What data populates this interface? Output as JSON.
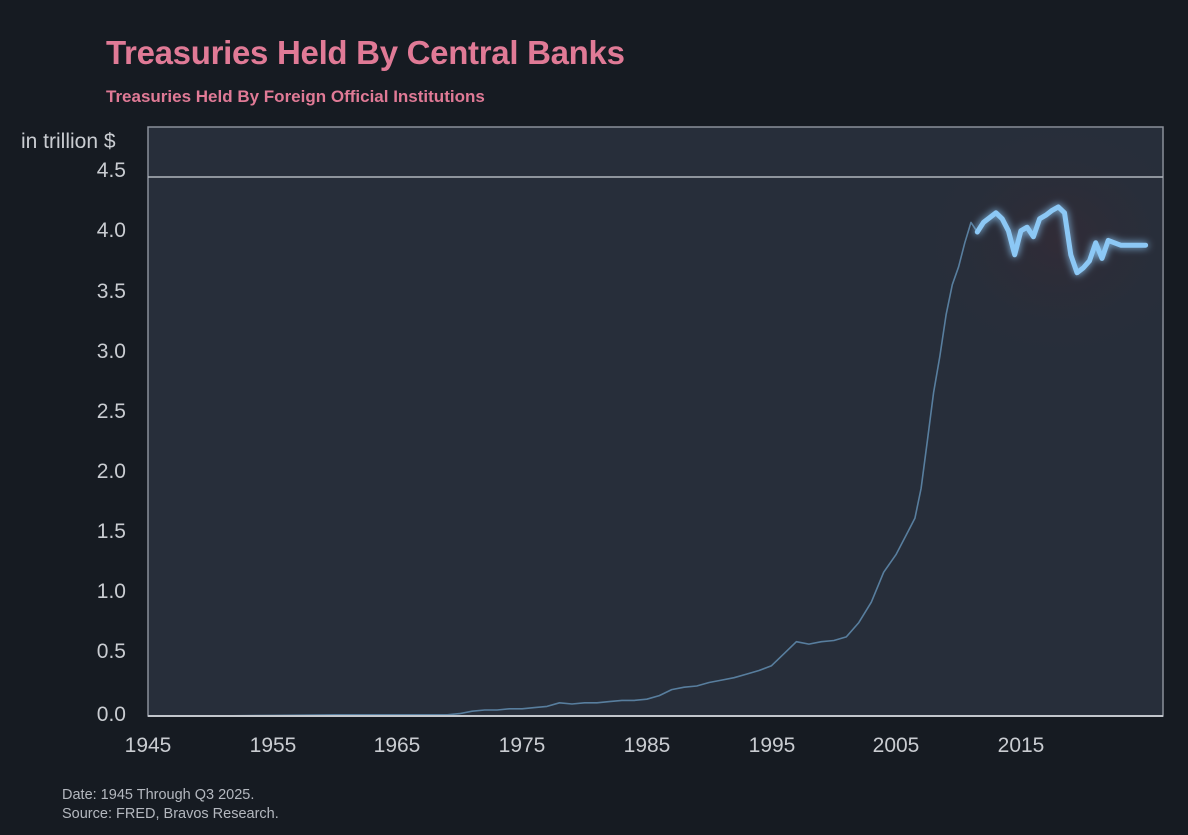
{
  "header": {
    "title": "Treasuries Held By Central Banks",
    "subtitle": "Treasuries Held By Foreign Official Institutions"
  },
  "footer": {
    "date_note": "Date: 1945 Through Q3 2025.",
    "source_note": "Source: FRED, Bravos Research."
  },
  "colors": {
    "background": "#161b22",
    "plot_background": "#272e3a",
    "title": "#e07a96",
    "line": "#8cc8f5",
    "axis_text": "#c9ccd1"
  },
  "chart_data": {
    "type": "line",
    "title": "Treasuries Held By Central Banks",
    "subtitle": "Treasuries Held By Foreign Official Institutions",
    "xlabel": "",
    "ylabel": "in trillion $",
    "xlim": [
      1945,
      2026.5
    ],
    "ylim": [
      0,
      4.9
    ],
    "x_ticks": [
      "1945",
      "1955",
      "1965",
      "1975",
      "1985",
      "1995",
      "2005",
      "2015"
    ],
    "y_ticks": [
      "0.0",
      "0.5",
      "1.0",
      "1.5",
      "2.0",
      "2.5",
      "3.0",
      "3.5",
      "4.0",
      "4.5"
    ],
    "reference_line": 4.5,
    "grid": false,
    "legend": null,
    "annotations": [
      "Date: 1945 Through Q3 2025.",
      "Source: FRED, Bravos Research."
    ],
    "series": [
      {
        "name": "Treasuries Held By Foreign Official Institutions",
        "x": [
          1945,
          1950,
          1955,
          1960,
          1965,
          1969,
          1970,
          1971,
          1972,
          1973,
          1974,
          1975,
          1976,
          1977,
          1978,
          1979,
          1980,
          1981,
          1982,
          1983,
          1984,
          1985,
          1986,
          1987,
          1988,
          1989,
          1990,
          1991,
          1992,
          1993,
          1994,
          1995,
          1996,
          1997,
          1998,
          1999,
          2000,
          2001,
          2002,
          2003,
          2004,
          2005,
          2006,
          2006.5,
          2007,
          2007.5,
          2008,
          2008.5,
          2009,
          2009.5,
          2010,
          2010.5,
          2011,
          2011.5,
          2012,
          2012.5,
          2013,
          2013.5,
          2014,
          2014.5,
          2015,
          2015.5,
          2016,
          2016.5,
          2017,
          2017.5,
          2018,
          2018.5,
          2019,
          2019.5,
          2020,
          2020.5,
          2021,
          2021.5,
          2022,
          2022.5,
          2023,
          2023.5,
          2024,
          2024.3,
          2024.6,
          2025,
          2025.5
        ],
        "values": [
          0.0,
          0.0,
          0.005,
          0.01,
          0.01,
          0.01,
          0.02,
          0.04,
          0.05,
          0.05,
          0.06,
          0.06,
          0.07,
          0.08,
          0.11,
          0.1,
          0.11,
          0.11,
          0.12,
          0.13,
          0.13,
          0.14,
          0.17,
          0.22,
          0.24,
          0.25,
          0.28,
          0.3,
          0.32,
          0.35,
          0.38,
          0.42,
          0.52,
          0.62,
          0.6,
          0.62,
          0.63,
          0.66,
          0.78,
          0.95,
          1.2,
          1.35,
          1.55,
          1.65,
          1.9,
          2.3,
          2.7,
          3.0,
          3.35,
          3.6,
          3.75,
          3.95,
          4.12,
          4.04,
          4.12,
          4.16,
          4.2,
          4.15,
          4.05,
          3.85,
          4.05,
          4.08,
          4.0,
          4.15,
          4.18,
          4.22,
          4.25,
          4.2,
          3.85,
          3.7,
          3.74,
          3.8,
          3.95,
          3.82,
          3.97,
          3.95,
          3.93,
          3.93,
          3.93,
          3.93,
          3.93,
          3.93,
          3.93
        ]
      }
    ]
  },
  "axis": {
    "ylabel": "in trillion $",
    "yticks": [
      "4.5",
      "4.0",
      "3.5",
      "3.0",
      "2.5",
      "2.0",
      "1.5",
      "1.0",
      "0.5",
      "0.0"
    ],
    "xticks": [
      "1945",
      "1955",
      "1965",
      "1975",
      "1985",
      "1995",
      "2005",
      "2015"
    ]
  }
}
